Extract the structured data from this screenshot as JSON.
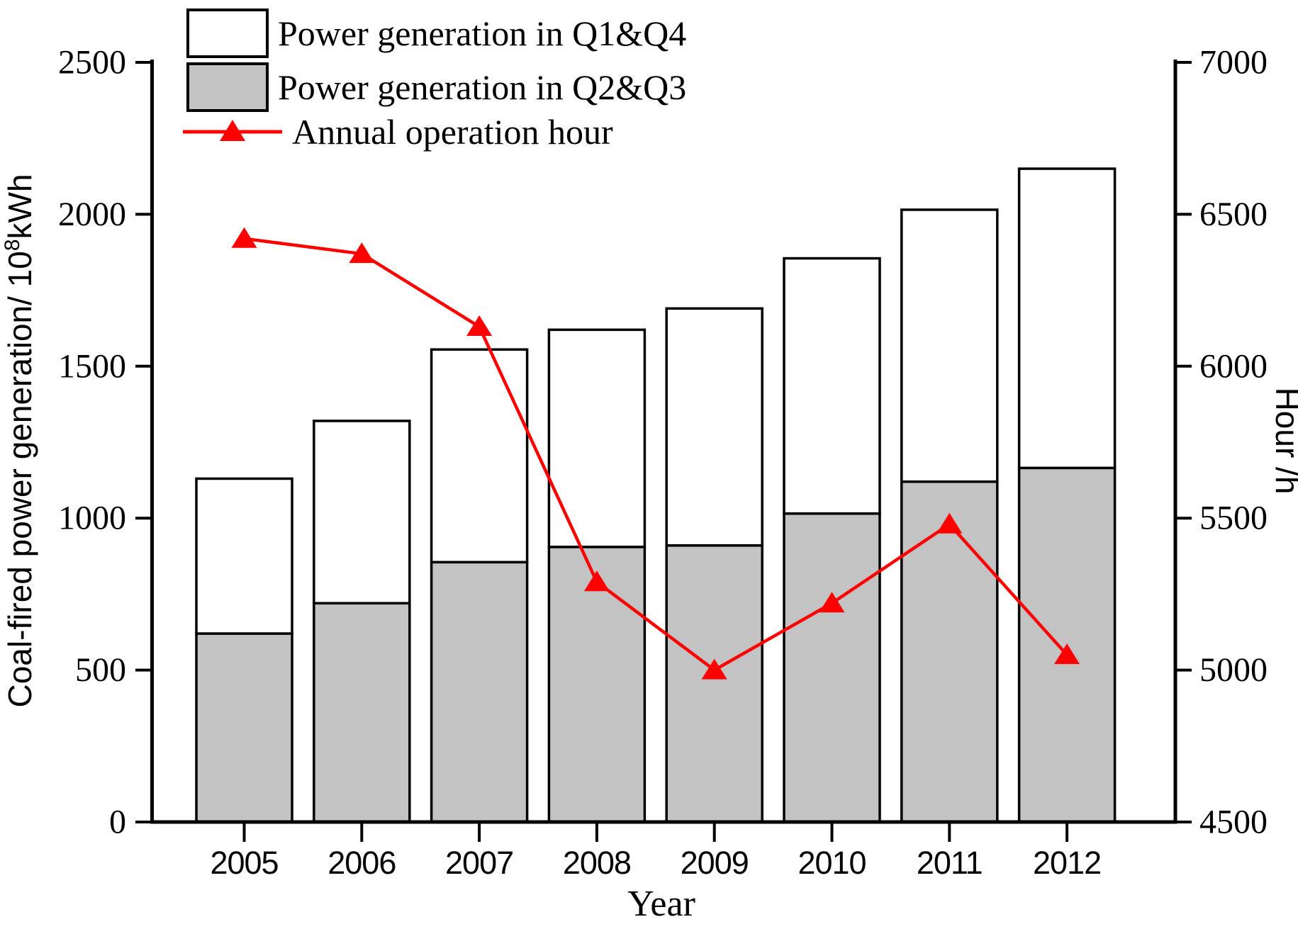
{
  "chart_data": {
    "type": "bar",
    "subtype": "stacked-bar-with-line-dual-axis",
    "categories": [
      "2005",
      "2006",
      "2007",
      "2008",
      "2009",
      "2010",
      "2011",
      "2012"
    ],
    "series": [
      {
        "name": "Power generation in Q1&Q4",
        "type": "bar-stack-upper",
        "axis": "left",
        "color": "#ffffff",
        "values": [
          510,
          600,
          700,
          715,
          780,
          840,
          895,
          985
        ]
      },
      {
        "name": "Power generation in Q2&Q3",
        "type": "bar-stack-lower",
        "axis": "left",
        "color": "#c3c3c3",
        "values": [
          620,
          720,
          855,
          905,
          910,
          1015,
          1120,
          1165
        ]
      },
      {
        "name": "Annual operation hour",
        "type": "line",
        "marker": "filled-triangle-up",
        "axis": "right",
        "color": "#ff0000",
        "values": [
          6420,
          6370,
          6130,
          5290,
          5000,
          5220,
          5480,
          5050
        ]
      }
    ],
    "bar_totals": [
      1130,
      1320,
      1555,
      1620,
      1690,
      1855,
      2015,
      2150
    ],
    "left_axis": {
      "label_plain": "Coal-fired power generation/ 10^8 kWh",
      "label_parts": [
        "Coal-fired power generation/ 10",
        "8",
        "kWh"
      ],
      "min": 0,
      "max": 2500,
      "ticks": [
        "0",
        "500",
        "1000",
        "1500",
        "2000",
        "2500"
      ]
    },
    "right_axis": {
      "label": "Hour /h",
      "min": 4500,
      "max": 7000,
      "ticks": [
        "4500",
        "5000",
        "5500",
        "6000",
        "6500",
        "7000"
      ]
    },
    "x_axis": {
      "label": "Year"
    },
    "legend": {
      "position": "top-left-inside",
      "items": [
        "Power generation in Q1&Q4",
        "Power generation in Q2&Q3",
        "Annual operation hour"
      ]
    },
    "colors": {
      "background": "#ffffff",
      "bar_q1q4_fill": "#ffffff",
      "bar_q2q3_fill": "#c3c3c3",
      "bar_border": "#000000",
      "axis": "#000000",
      "line": "#ff0000"
    },
    "grid": false
  }
}
